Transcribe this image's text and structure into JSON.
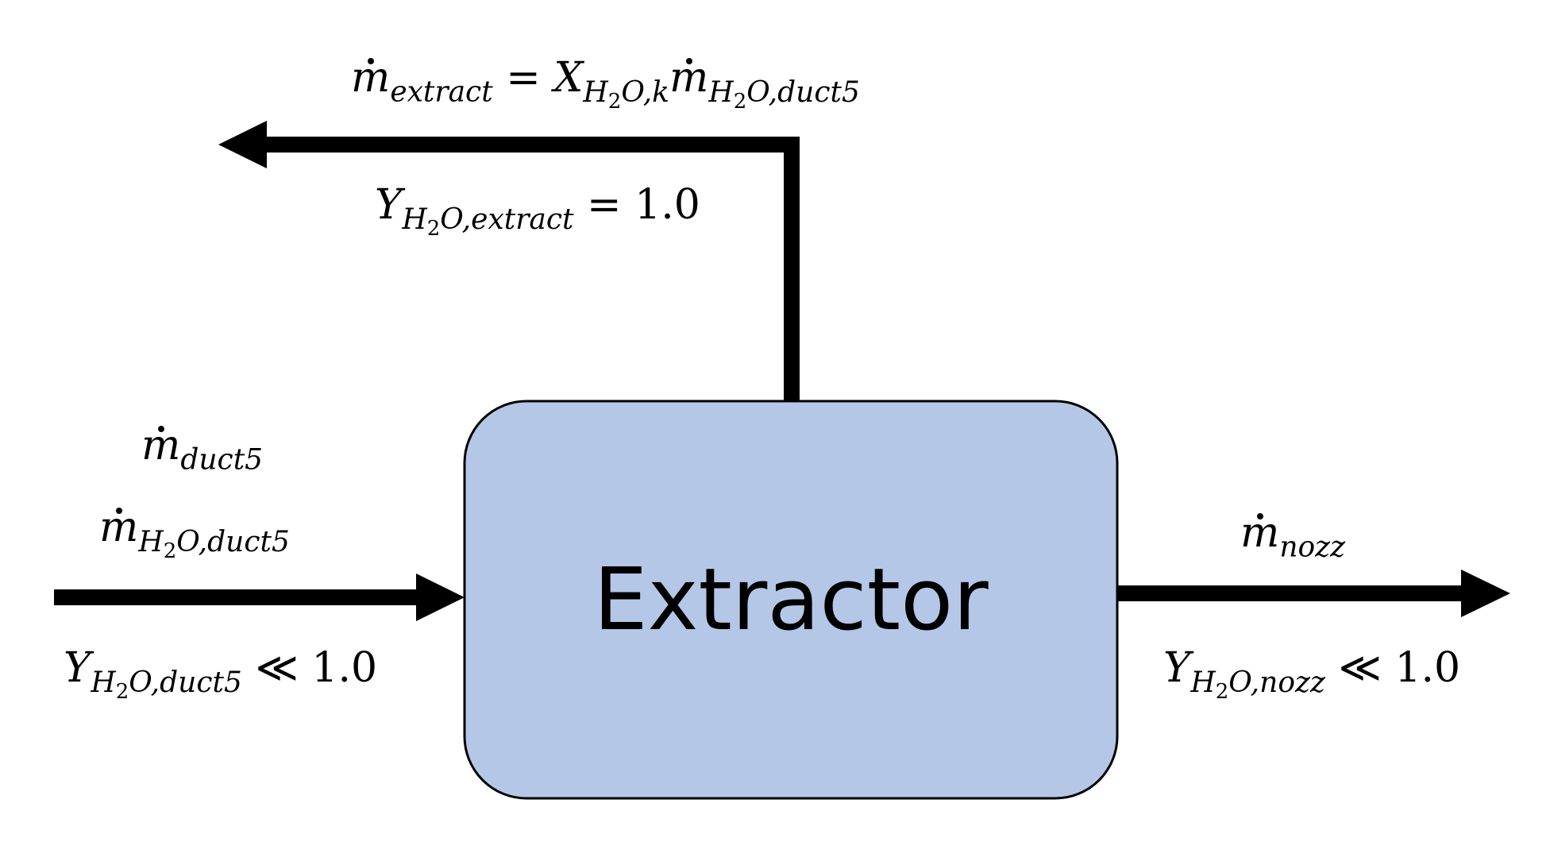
{
  "box": {
    "label": "Extractor",
    "fill": "#b4c7e7",
    "stroke": "#000000"
  },
  "symbols": {
    "m": "m",
    "y": "Y",
    "x": "X",
    "h2": "H",
    "two": "2",
    "o_comma": "O,",
    "eq": "=",
    "ll": "≪"
  },
  "extract": {
    "flow_sub": "extract",
    "xsub_tail": "k",
    "m_tail": "duct5",
    "y_tail": "extract",
    "y_value": "1.0"
  },
  "inlet": {
    "flow_sub": "duct5",
    "h2o_tail": "duct5",
    "y_tail": "duct5",
    "y_value": "1.0"
  },
  "outlet": {
    "flow_sub": "nozz",
    "y_tail": "nozz",
    "y_value": "1.0"
  }
}
